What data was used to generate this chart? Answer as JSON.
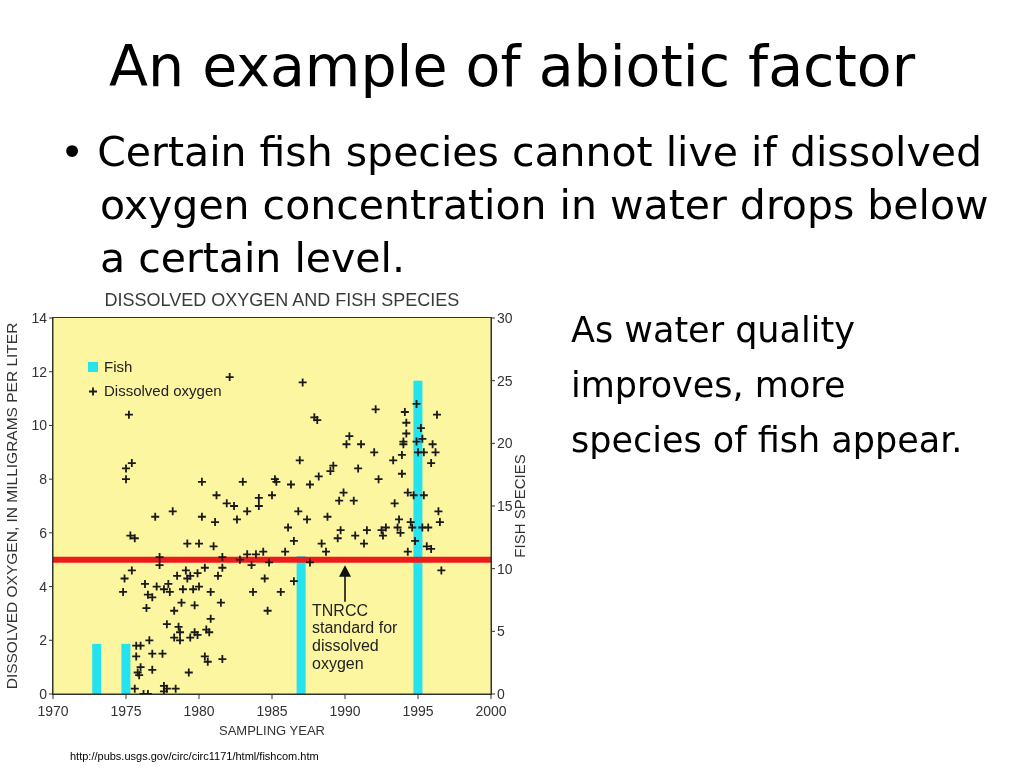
{
  "chart_data": {
    "type": "scatter",
    "title": "DISSOLVED OXYGEN AND FISH SPECIES",
    "xlabel": "SAMPLING YEAR",
    "ylabel": "DISSOLVED OXYGEN, IN MILLIGRAMS PER LITER",
    "y2label": "FISH SPECIES",
    "xlim": [
      1970,
      2000
    ],
    "xticks": [
      1970,
      1975,
      1980,
      1985,
      1990,
      1995,
      2000
    ],
    "ylim": [
      0,
      14
    ],
    "yticks": [
      0,
      2,
      4,
      6,
      8,
      10,
      12,
      14
    ],
    "y2lim": [
      0,
      30
    ],
    "y2ticks": [
      0,
      5,
      10,
      15,
      20,
      25,
      30
    ],
    "legend": "top left",
    "marker": "cross",
    "series": [
      {
        "name": "Fish",
        "type": "bar",
        "axis": "y2",
        "color": "#22e3ee",
        "x": [
          1973,
          1975,
          1987,
          1995
        ],
        "values": [
          4,
          4,
          11,
          25
        ]
      },
      {
        "name": "Dissolved oxygen",
        "axis": "y",
        "color": "#1a1a1a",
        "x": [
          1982.1,
          1975.2,
          1975.0,
          1975.4,
          1975.0,
          1980.2,
          1983.0,
          1981.2,
          1981.9,
          1982.4,
          1983.3,
          1982.6,
          1977.0,
          1978.2,
          1980.2,
          1981.1,
          1975.3,
          1975.6,
          1979.2,
          1980.0,
          1981.0,
          1977.3,
          1981.6,
          1982.8,
          1977.3,
          1975.4,
          1974.9,
          1974.8,
          1976.3,
          1976.5,
          1976.8,
          1976.4,
          1977.1,
          1977.6,
          1977.9,
          1978.0,
          1978.5,
          1979.1,
          1979.2,
          1979.4,
          1978.9,
          1979.6,
          1980.0,
          1979.9,
          1980.4,
          1981.6,
          1981.3,
          1980.8,
          1983.7,
          1978.8,
          1979.7,
          1981.5,
          1978.3,
          1980.8,
          1977.8,
          1978.6,
          1978.7,
          1978.3,
          1978.7,
          1979.4,
          1979.7,
          1979.9,
          1980.5,
          1980.7,
          1976.6,
          1975.7,
          1976.0,
          1975.7,
          1976.8,
          1977.5,
          1980.4,
          1980.6,
          1981.6,
          1976.0,
          1975.8,
          1975.9,
          1976.8,
          1979.3,
          1975.6,
          1977.6,
          1977.8,
          1978.4,
          1976.2,
          1976.5,
          1977.6,
          1985.2,
          1985.3,
          1986.3,
          1987.6,
          1988.2,
          1989.0,
          1990.9,
          1992.3,
          1993.9,
          1984.1,
          1984.1,
          1985.0,
          1986.8,
          1987.4,
          1986.1,
          1986.5,
          1985.9,
          1989.9,
          1989.6,
          1990.6,
          1988.8,
          1989.7,
          1989.5,
          1990.7,
          1991.3,
          1991.5,
          1988.4,
          1988.7,
          1992.5,
          1992.6,
          1992.8,
          1993.4,
          1993.7,
          1993.6,
          1993.8,
          1994.3,
          1994.7,
          1995.4,
          1994.5,
          1994.6,
          1995.3,
          1995.7,
          1994.8,
          1995.6,
          1995.9,
          1994.3,
          1996.4,
          1996.5,
          1996.6,
          1987.6,
          1983.6,
          1984.8,
          1983.3,
          1983.9,
          1984.4,
          1984.5,
          1985.6,
          1986.5,
          1984.7,
          1987.1,
          1987.9,
          1988.1,
          1992.1,
          1994.1,
          1994.2,
          1994.2,
          1994.0,
          1994.0,
          1994.9,
          1995.2,
          1994.9,
          1995.3,
          1995.0,
          1995.4,
          1996.3,
          1996.0,
          1996.2,
          1995.9,
          1990.3,
          1990.1,
          1991.1,
          1992.0,
          1993.3,
          1993.9,
          1986.9,
          1989.2
        ],
        "values": [
          11.8,
          10.4,
          8.4,
          8.6,
          8.0,
          7.9,
          7.9,
          7.4,
          7.1,
          7.0,
          6.8,
          6.5,
          6.6,
          6.8,
          6.6,
          6.4,
          5.9,
          5.8,
          5.6,
          5.6,
          5.5,
          5.1,
          5.1,
          5.0,
          4.8,
          4.6,
          4.3,
          3.8,
          4.1,
          3.7,
          3.6,
          3.2,
          4.0,
          3.9,
          4.1,
          3.8,
          4.4,
          4.6,
          4.3,
          4.4,
          3.9,
          3.9,
          4.0,
          4.5,
          4.7,
          4.7,
          4.4,
          3.8,
          3.8,
          3.4,
          3.3,
          3.4,
          3.1,
          2.8,
          2.6,
          2.5,
          2.3,
          2.1,
          2.0,
          2.1,
          2.3,
          2.2,
          2.4,
          2.3,
          2.0,
          1.8,
          1.8,
          1.4,
          1.5,
          1.5,
          1.4,
          1.2,
          1.3,
          1.0,
          0.8,
          0.7,
          0.9,
          0.8,
          0.2,
          0.3,
          0.2,
          0.2,
          0.0,
          0.0,
          0.1,
          8.0,
          7.9,
          7.8,
          7.8,
          8.1,
          8.3,
          8.4,
          8.0,
          8.2,
          7.3,
          7.0,
          7.4,
          6.8,
          6.5,
          6.2,
          5.7,
          5.3,
          7.5,
          7.2,
          7.2,
          6.6,
          6.1,
          5.8,
          5.9,
          5.6,
          6.1,
          5.6,
          5.3,
          6.1,
          5.9,
          6.2,
          7.1,
          6.5,
          6.2,
          6.0,
          7.5,
          7.4,
          7.4,
          6.4,
          6.2,
          6.2,
          6.2,
          5.7,
          5.5,
          5.4,
          5.3,
          6.8,
          6.4,
          4.6,
          4.9,
          4.8,
          4.9,
          5.2,
          5.2,
          5.3,
          4.3,
          3.8,
          4.2,
          3.1,
          11.6,
          10.3,
          10.2,
          10.6,
          10.5,
          10.1,
          9.7,
          9.4,
          9.3,
          10.8,
          9.9,
          9.4,
          9.5,
          9.0,
          9.0,
          10.4,
          9.3,
          9.0,
          8.6,
          9.6,
          9.3,
          9.3,
          9.0,
          8.7,
          8.9,
          8.7,
          8.5
        ]
      }
    ],
    "ref_lines": [
      {
        "axis": "y",
        "value": 5,
        "color": "#ec1c1c"
      }
    ],
    "annotations": [
      "An example of abiotic factor",
      "• Certain fish species cannot live if dissolved oxygen concentration in water drops below a certain level.",
      "As water quality\nimproves, more\nspecies of fish appear.",
      "http://pubs.usgs.gov/circ/circ1171/html/fishcom.htm",
      {
        "text": "TNRCC standard for dissolved oxygen",
        "x": 1990,
        "y": 5
      }
    ]
  }
}
